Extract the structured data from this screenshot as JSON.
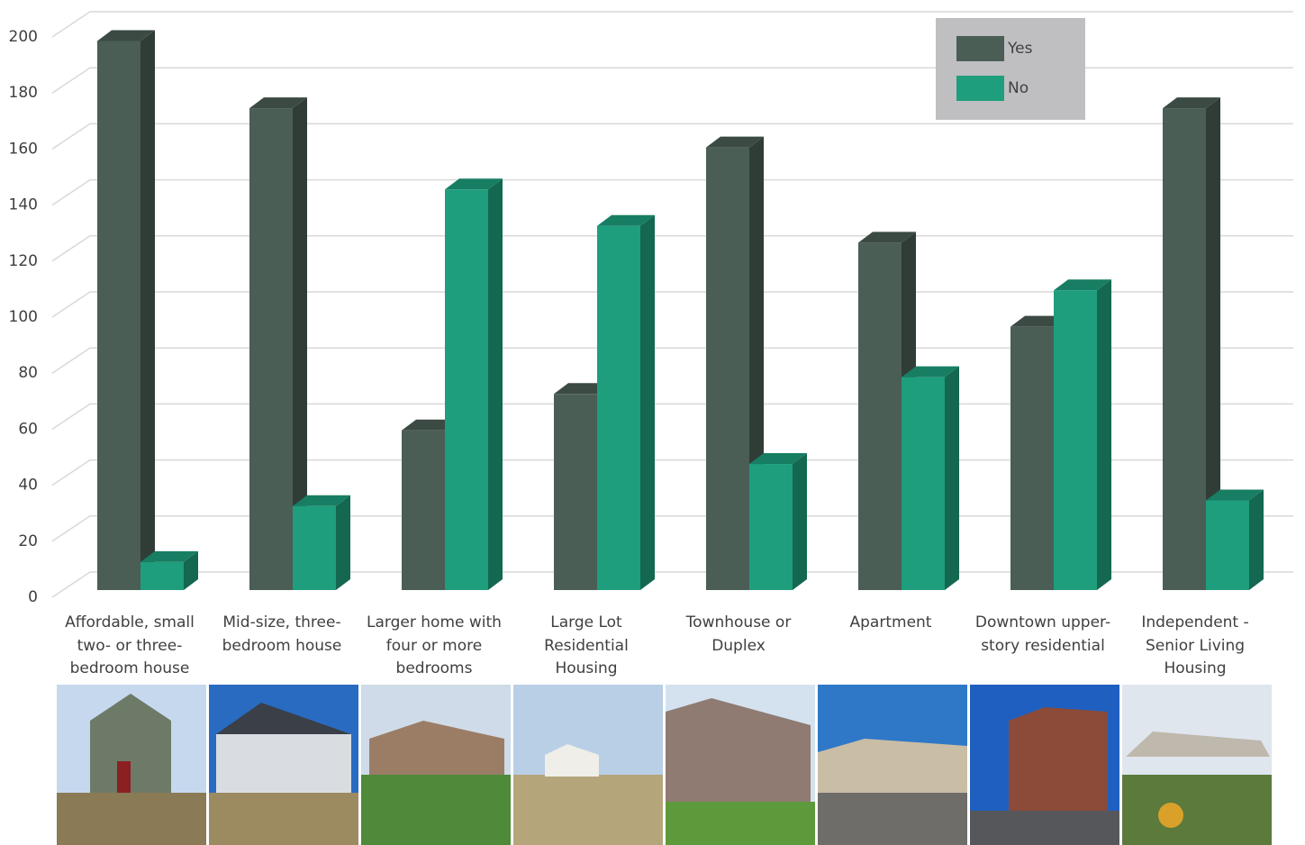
{
  "chart_data": {
    "type": "bar3d",
    "categories": [
      "Affordable, small two- or three-bedroom house",
      "Mid-size, three-bedroom house",
      "Larger home with four or more bedrooms",
      "Large Lot Residential Housing",
      "Townhouse or Duplex",
      "Apartment",
      "Downtown upper-story residential",
      "Independent - Senior Living Housing"
    ],
    "series": [
      {
        "name": "Yes",
        "color": "#4a5e55",
        "values": [
          196,
          172,
          57,
          70,
          158,
          124,
          94,
          172
        ]
      },
      {
        "name": "No",
        "color": "#1e9e7c",
        "values": [
          10,
          30,
          143,
          130,
          45,
          76,
          107,
          32
        ]
      }
    ],
    "ylim": [
      0,
      200
    ],
    "yticks": [
      0,
      20,
      40,
      60,
      80,
      100,
      120,
      140,
      160,
      180,
      200
    ],
    "grid": true,
    "legend": "top-right"
  }
}
